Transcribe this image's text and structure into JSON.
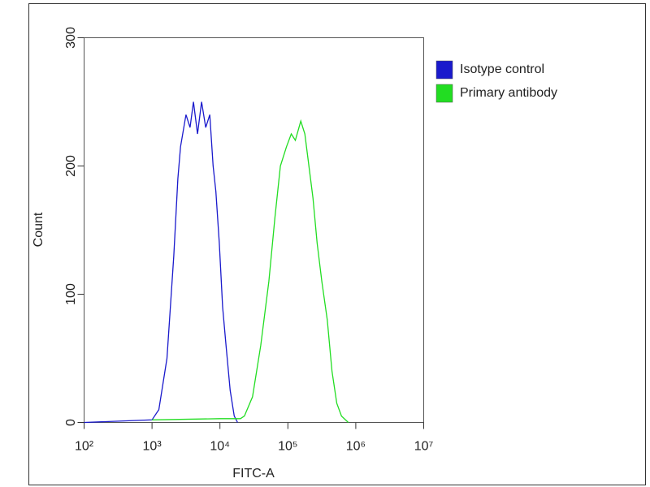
{
  "chart_data": {
    "type": "histogram-line",
    "x_label": "FITC-A",
    "y_label": "Count",
    "xscale": "log",
    "xlim": [
      100,
      10000000
    ],
    "xticks": [
      {
        "value": 100,
        "label": "10²"
      },
      {
        "value": 1000,
        "label": "10³"
      },
      {
        "value": 10000,
        "label": "10⁴"
      },
      {
        "value": 100000,
        "label": "10⁵"
      },
      {
        "value": 1000000,
        "label": "10⁶"
      },
      {
        "value": 10000000,
        "label": "10⁷"
      }
    ],
    "ylim": [
      0,
      300
    ],
    "yticks": [
      0,
      100,
      200,
      300
    ],
    "legend": "top-right",
    "series": [
      {
        "name": "Isotype control",
        "color": "#1a1acc",
        "x": [
          100,
          1000,
          1260,
          1660,
          2090,
          2400,
          2630,
          3160,
          3630,
          4070,
          4680,
          5370,
          6170,
          7080,
          7940,
          8710,
          9770,
          10960,
          12300,
          14130,
          16220,
          18200
        ],
        "values": [
          0,
          2,
          10,
          50,
          130,
          190,
          215,
          240,
          230,
          250,
          225,
          250,
          230,
          240,
          200,
          180,
          140,
          90,
          60,
          25,
          5,
          0
        ]
      },
      {
        "name": "Primary antibody",
        "color": "#22dd22",
        "x": [
          1000,
          10000,
          20000,
          22900,
          30200,
          39800,
          52500,
          64600,
          77600,
          95500,
          112200,
          128800,
          154900,
          177800,
          204200,
          234400,
          269200,
          316200,
          380200,
          446700,
          524800,
          616600,
          776200
        ],
        "values": [
          2,
          3,
          3,
          5,
          20,
          60,
          110,
          160,
          200,
          215,
          225,
          220,
          235,
          225,
          200,
          175,
          140,
          110,
          80,
          40,
          15,
          5,
          0
        ]
      }
    ]
  }
}
